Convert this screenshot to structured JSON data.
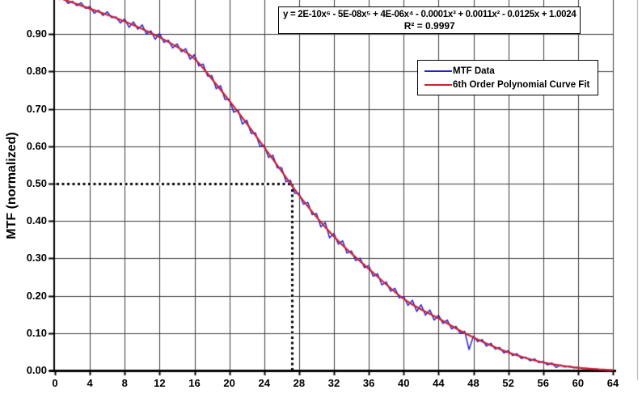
{
  "chart_data": {
    "type": "line",
    "y_axis_title": "MTF (normalized)",
    "x_ticks": [
      0,
      4,
      8,
      12,
      16,
      20,
      24,
      28,
      32,
      36,
      40,
      44,
      48,
      52,
      56,
      60,
      64
    ],
    "y_ticks": [
      "0.00",
      "0.10",
      "0.20",
      "0.30",
      "0.40",
      "0.50",
      "0.60",
      "0.70",
      "0.80",
      "0.90"
    ],
    "x_range": [
      0,
      64
    ],
    "y_range_visible": [
      0.0,
      0.99
    ],
    "grid": {
      "x_step": 4,
      "y_step": 0.1,
      "on": true,
      "color": "#3c3c3c",
      "right_frame_color": "#aaaaaa"
    },
    "axis_color": "#000000",
    "background_color": "#ffffff",
    "annotation_box": {
      "equation": "y = 2E-10x⁶ - 5E-08x⁵ + 4E-06x⁴ - 0.0001x³ + 0.0011x² - 0.0125x + 1.0024",
      "r_squared": "R² = 0.9997"
    },
    "marker_lines": {
      "style": "dotted",
      "color": "#000000",
      "y_value": 0.5,
      "x_value": 27.2
    },
    "legend": {
      "position": "inside-upper-right",
      "border_color": "#000000"
    },
    "series": [
      {
        "name": "MTF Data",
        "color": "#2222CC",
        "line_width": 1.5,
        "x_start": 0,
        "x_step": 0.5,
        "values": [
          1.0,
          0.992,
          0.998,
          0.982,
          0.988,
          0.976,
          0.984,
          0.969,
          0.974,
          0.956,
          0.964,
          0.95,
          0.96,
          0.944,
          0.946,
          0.93,
          0.941,
          0.918,
          0.933,
          0.913,
          0.925,
          0.9,
          0.909,
          0.886,
          0.902,
          0.878,
          0.884,
          0.863,
          0.874,
          0.853,
          0.861,
          0.833,
          0.845,
          0.815,
          0.82,
          0.788,
          0.789,
          0.754,
          0.762,
          0.725,
          0.725,
          0.691,
          0.698,
          0.659,
          0.67,
          0.634,
          0.636,
          0.6,
          0.603,
          0.57,
          0.576,
          0.542,
          0.543,
          0.505,
          0.509,
          0.474,
          0.474,
          0.445,
          0.45,
          0.417,
          0.42,
          0.384,
          0.396,
          0.355,
          0.367,
          0.338,
          0.347,
          0.314,
          0.32,
          0.294,
          0.301,
          0.275,
          0.281,
          0.252,
          0.259,
          0.229,
          0.237,
          0.212,
          0.22,
          0.194,
          0.198,
          0.174,
          0.188,
          0.158,
          0.176,
          0.148,
          0.162,
          0.135,
          0.148,
          0.126,
          0.135,
          0.111,
          0.118,
          0.099,
          0.105,
          0.056,
          0.092,
          0.077,
          0.083,
          0.065,
          0.073,
          0.057,
          0.062,
          0.047,
          0.053,
          0.04,
          0.045,
          0.032,
          0.036,
          0.026,
          0.031,
          0.021,
          0.024,
          0.015,
          0.02,
          0.008,
          0.015,
          0.009,
          0.012,
          0.007,
          0.008,
          0.005,
          0.006,
          0.003,
          0.004,
          0.002,
          0.003,
          0.001,
          0.001
        ]
      },
      {
        "name": "6th Order Polynomial Curve Fit",
        "color": "#CC2233",
        "line_width": 2.2,
        "x_start": 0,
        "x_step": 2,
        "values": [
          1.0,
          0.985,
          0.968,
          0.952,
          0.934,
          0.914,
          0.892,
          0.866,
          0.838,
          0.78,
          0.722,
          0.661,
          0.597,
          0.533,
          0.468,
          0.41,
          0.357,
          0.313,
          0.272,
          0.23,
          0.19,
          0.163,
          0.14,
          0.112,
          0.088,
          0.067,
          0.048,
          0.033,
          0.021,
          0.013,
          0.007,
          0.003,
          0.001
        ]
      }
    ]
  }
}
